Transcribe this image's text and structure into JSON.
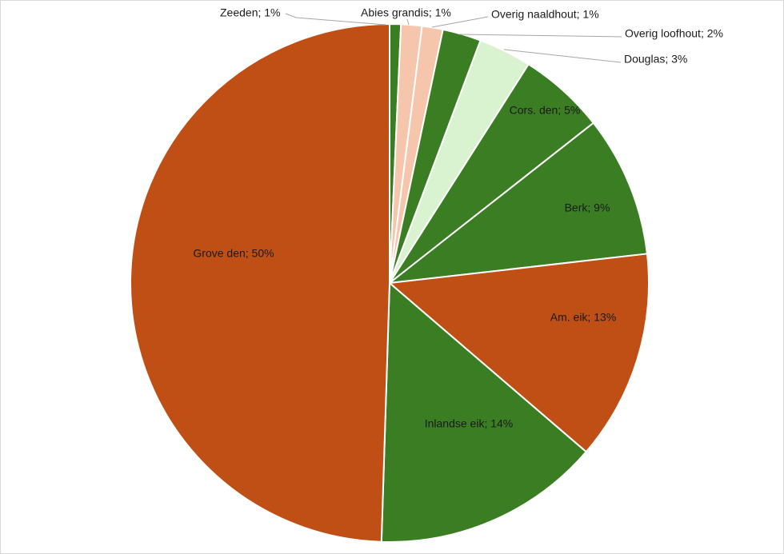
{
  "chart_data": {
    "type": "pie",
    "title": "",
    "slices": [
      {
        "label": "Zeeden",
        "value": 0.7,
        "display": "Zeeden; 1%",
        "color": "#3b7d23",
        "label_placement": "outside"
      },
      {
        "label": "Abies grandis",
        "value": 1.3,
        "display": "Abies grandis; 1%",
        "color": "#f5c6ab",
        "label_placement": "outside"
      },
      {
        "label": "Overig naaldhout",
        "value": 1.3,
        "display": "Overig naaldhout; 1%",
        "color": "#f5c6ab",
        "label_placement": "outside"
      },
      {
        "label": "Overig  loofhout",
        "value": 2.4,
        "display": "Overig  loofhout; 2%",
        "color": "#3b7d23",
        "label_placement": "outside"
      },
      {
        "label": "Douglas",
        "value": 3.3,
        "display": "Douglas; 3%",
        "color": "#d9f2d0",
        "label_placement": "outside"
      },
      {
        "label": "Cors. den",
        "value": 5.4,
        "display": "Cors. den; 5%",
        "color": "#3b7d23",
        "label_placement": "inside"
      },
      {
        "label": "Berk",
        "value": 8.8,
        "display": "Berk; 9%",
        "color": "#3b7d23",
        "label_placement": "inside"
      },
      {
        "label": "Am. eik",
        "value": 13.1,
        "display": "Am. eik; 13%",
        "color": "#c04f15",
        "label_placement": "inside"
      },
      {
        "label": "Inlandse eik",
        "value": 14.2,
        "display": "Inlandse eik; 14%",
        "color": "#3b7d23",
        "label_placement": "inside"
      },
      {
        "label": "Grove den",
        "value": 49.5,
        "display": "Grove den; 50%",
        "color": "#c04f15",
        "label_placement": "inside"
      }
    ],
    "start_angle": "12 o'clock",
    "direction": "clockwise",
    "legend": "none"
  }
}
